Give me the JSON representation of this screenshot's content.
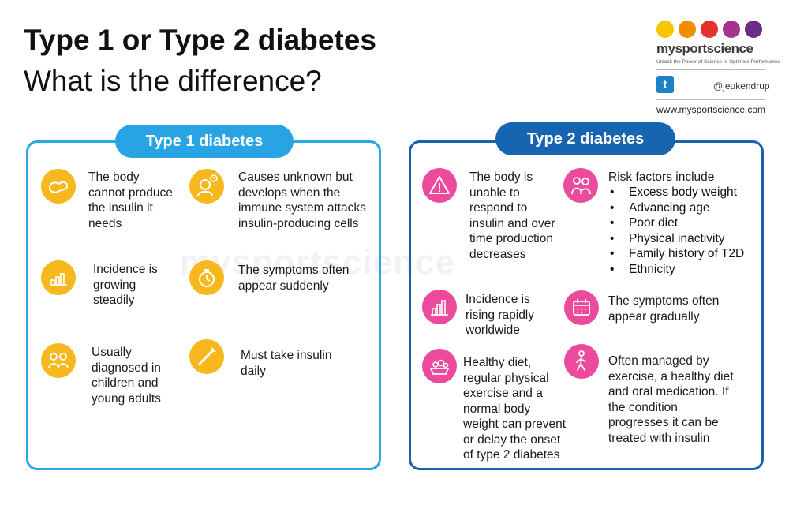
{
  "header": {
    "title": "Type 1 or Type 2 diabetes",
    "subtitle": "What is the difference?"
  },
  "logo": {
    "brand": "mysportscience",
    "tagline": "Unlock the Power of Science to Optimise Performance",
    "twitter_handle": "@jeukendrup",
    "website": "www.mysportscience.com",
    "dot_colors": [
      "#f7c600",
      "#f28c00",
      "#e5322d",
      "#a6338e",
      "#6a2c85"
    ]
  },
  "watermark": "mysportscience",
  "type1": {
    "heading": "Type 1 diabetes",
    "accent": "#2ba7e6",
    "icon_color": "#f6b81c",
    "items": [
      {
        "icon": "pancreas-icon",
        "text": [
          "The body",
          "cannot produce",
          "the insulin it",
          "needs"
        ]
      },
      {
        "icon": "confused-person-icon",
        "text": [
          "Causes unknown but",
          "develops when the",
          "immune system attacks",
          "insulin-producing cells"
        ]
      },
      {
        "icon": "bar-chart-icon",
        "text": [
          "Incidence is",
          "growing",
          "steadily"
        ]
      },
      {
        "icon": "stopwatch-icon",
        "text": [
          "The symptoms often",
          "appear suddenly"
        ]
      },
      {
        "icon": "children-icon",
        "text": [
          "Usually",
          "diagnosed in",
          "children and",
          "young adults"
        ]
      },
      {
        "icon": "syringe-icon",
        "text": [
          "Must take insulin",
          "daily"
        ]
      }
    ]
  },
  "type2": {
    "heading": "Type 2 diabetes",
    "accent": "#1a62ae",
    "icon_color": "#ec4b9d",
    "items": [
      {
        "icon": "warning-icon",
        "text": [
          "The body is",
          "unable to",
          "respond to",
          "insulin and over",
          "time production",
          "decreases"
        ]
      },
      {
        "icon": "elderly-couple-icon",
        "text": [
          "Risk factors include"
        ]
      },
      {
        "icon": "rising-chart-icon",
        "text": [
          "Incidence is",
          "rising rapidly",
          "worldwide"
        ]
      },
      {
        "icon": "calendar-icon",
        "text": [
          "The symptoms often",
          "appear gradually"
        ]
      },
      {
        "icon": "healthy-food-icon",
        "text": [
          "Healthy diet,",
          "regular physical",
          "exercise and a",
          "normal body",
          "weight can prevent",
          "or delay the onset",
          "of type 2 diabetes"
        ]
      },
      {
        "icon": "walking-person-icon",
        "text": [
          "Often managed by",
          "exercise, a healthy diet",
          "and oral medication. If",
          "the condition",
          "progresses it can be",
          "treated with insulin"
        ]
      }
    ],
    "risk_factors": [
      "Excess body weight",
      "Advancing age",
      "Poor diet",
      "Physical inactivity",
      "Family history of T2D",
      "Ethnicity"
    ]
  }
}
